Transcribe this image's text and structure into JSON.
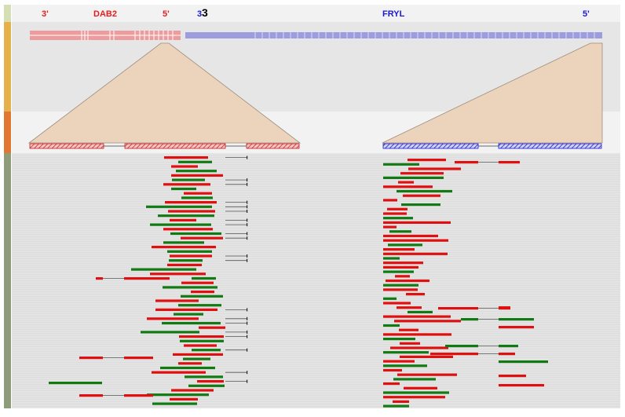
{
  "genes": [
    {
      "name": "DAB2",
      "left_label": "3'",
      "right_label": "5'",
      "color": "#e02020",
      "light_color": "#ec9c9c"
    },
    {
      "name": "FRYL",
      "left_label": "3",
      "right_label": "5'",
      "color": "#1a1ad0",
      "light_color": "#9c9cde"
    }
  ],
  "junction_label": "3",
  "colors": {
    "red_read": "#e01010",
    "green_read": "#127a12",
    "connector": "#555555",
    "zoom_fill": "#ecd4bc",
    "track_bar_1": "#e6b04a",
    "track_bar_2": "#e07832",
    "track_bar_3": "#8e9c7a",
    "track_bar_0": "#d6deb4"
  },
  "reads": {
    "red_rows": 57,
    "green_rows": 57
  }
}
